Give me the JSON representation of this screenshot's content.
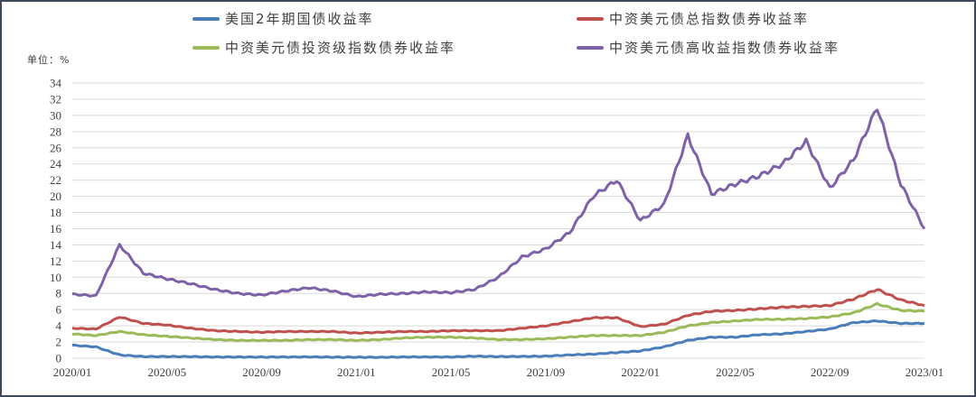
{
  "chart_data": {
    "type": "line",
    "title": "",
    "unit_label": "单位：%",
    "xlabel": "",
    "ylabel": "%",
    "ylim": [
      0,
      34
    ],
    "yticks": [
      0,
      2,
      4,
      6,
      8,
      10,
      12,
      14,
      16,
      18,
      20,
      22,
      24,
      26,
      28,
      30,
      32,
      34
    ],
    "xticks": [
      "2020/01",
      "2020/05",
      "2020/09",
      "2021/01",
      "2021/05",
      "2021/09",
      "2022/01",
      "2022/05",
      "2022/09",
      "2023/01"
    ],
    "grid": true,
    "legend_position": "top",
    "x": [
      "2020/01",
      "2020/02",
      "2020/03",
      "2020/04",
      "2020/05",
      "2020/06",
      "2020/07",
      "2020/08",
      "2020/09",
      "2020/10",
      "2020/11",
      "2020/12",
      "2021/01",
      "2021/02",
      "2021/03",
      "2021/04",
      "2021/05",
      "2021/06",
      "2021/07",
      "2021/08",
      "2021/09",
      "2021/10",
      "2021/11",
      "2021/12",
      "2022/01",
      "2022/02",
      "2022/03",
      "2022/04",
      "2022/05",
      "2022/06",
      "2022/07",
      "2022/08",
      "2022/09",
      "2022/10",
      "2022/11",
      "2022/12",
      "2023/01"
    ],
    "series": [
      {
        "name": "美国2年期国债收益率",
        "color": "#4a7ebb",
        "values": [
          1.6,
          1.4,
          0.4,
          0.2,
          0.2,
          0.2,
          0.15,
          0.15,
          0.14,
          0.15,
          0.16,
          0.13,
          0.12,
          0.11,
          0.15,
          0.16,
          0.15,
          0.25,
          0.2,
          0.22,
          0.25,
          0.4,
          0.5,
          0.7,
          0.9,
          1.4,
          2.2,
          2.6,
          2.6,
          2.9,
          3.0,
          3.3,
          3.6,
          4.4,
          4.6,
          4.3,
          4.3
        ]
      },
      {
        "name": "中资美元债总指数债券收益率",
        "color": "#c0504d",
        "values": [
          3.7,
          3.6,
          5.1,
          4.3,
          4.1,
          3.7,
          3.4,
          3.3,
          3.2,
          3.3,
          3.3,
          3.3,
          3.1,
          3.2,
          3.3,
          3.3,
          3.4,
          3.4,
          3.4,
          3.7,
          4.0,
          4.5,
          5.0,
          5.0,
          3.9,
          4.2,
          5.3,
          5.8,
          5.9,
          6.1,
          6.3,
          6.4,
          6.5,
          7.3,
          8.5,
          7.2,
          6.5
        ]
      },
      {
        "name": "中资美元债投资级指数债券收益率",
        "color": "#9bbb59",
        "values": [
          3.0,
          2.8,
          3.3,
          2.9,
          2.7,
          2.5,
          2.3,
          2.2,
          2.2,
          2.2,
          2.3,
          2.3,
          2.2,
          2.3,
          2.5,
          2.6,
          2.6,
          2.5,
          2.3,
          2.3,
          2.4,
          2.6,
          2.8,
          2.8,
          2.8,
          3.2,
          4.0,
          4.4,
          4.6,
          4.8,
          4.8,
          4.9,
          5.1,
          5.6,
          6.7,
          5.9,
          5.8
        ]
      },
      {
        "name": "中资美元债高收益指数债券收益率",
        "color": "#7e62a8",
        "values": [
          7.9,
          7.7,
          14.0,
          10.5,
          9.8,
          9.2,
          8.5,
          8.0,
          7.8,
          8.3,
          8.7,
          8.3,
          7.6,
          7.9,
          8.0,
          8.2,
          8.1,
          8.5,
          10.0,
          12.5,
          13.5,
          15.5,
          20.0,
          22.0,
          17.0,
          19.0,
          27.5,
          20.3,
          21.5,
          22.5,
          24.0,
          26.8,
          21.0,
          24.5,
          31.0,
          21.5,
          16.0
        ]
      }
    ]
  },
  "legend": {
    "items": [
      {
        "label": "美国2年期国债收益率",
        "color": "#4a7ebb"
      },
      {
        "label": "中资美元债总指数债券收益率",
        "color": "#c0504d"
      },
      {
        "label": "中资美元债投资级指数债券收益率",
        "color": "#9bbb59"
      },
      {
        "label": "中资美元债高收益指数债券收益率",
        "color": "#7e62a8"
      }
    ]
  },
  "unit_label": "单位：%"
}
